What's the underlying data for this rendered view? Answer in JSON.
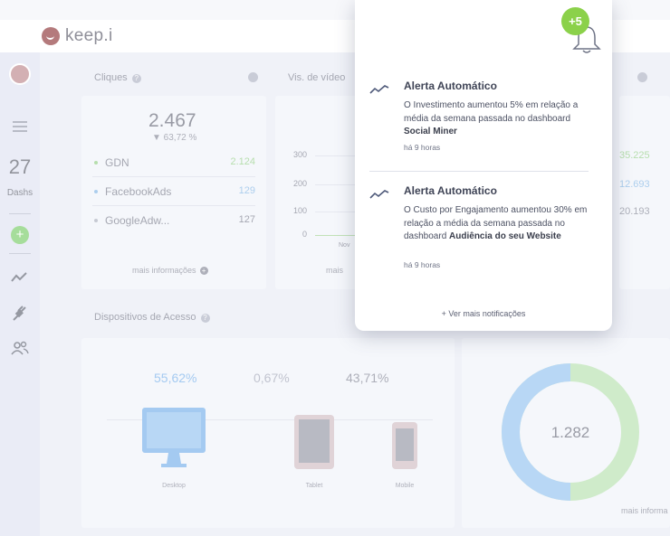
{
  "app": {
    "logo_text": "keep.i"
  },
  "sidebar": {
    "dash_count": "27",
    "dash_label": "Dashs",
    "items": [
      {
        "icon": "trend-icon"
      },
      {
        "icon": "plug-icon"
      },
      {
        "icon": "users-icon"
      }
    ]
  },
  "panels": {
    "cliques": {
      "title": "Cliques",
      "total": "2.467",
      "delta": "▼ 63,72 %",
      "rows": [
        {
          "label": "GDN",
          "value": "2.124",
          "color": "#7cc46b"
        },
        {
          "label": "FacebookAds",
          "value": "129",
          "color": "#6aa7e0"
        },
        {
          "label": "GoogleAdw...",
          "value": "127",
          "color": "#9aa0b0"
        }
      ],
      "more": "mais informações"
    },
    "video": {
      "title": "Vis. de vídeo",
      "y_ticks": [
        "300",
        "200",
        "100",
        "0"
      ],
      "x_tick": "Nov",
      "more": "mais"
    },
    "right_values": [
      "35.225",
      "12.693",
      "20.193"
    ],
    "devices": {
      "title": "Dispositivos de Acesso",
      "percents": [
        {
          "value": "55,62%",
          "color": "#5aa0e6"
        },
        {
          "value": "0,67%",
          "color": "#8f94a8"
        },
        {
          "value": "43,71%",
          "color": "#6b6f80"
        }
      ],
      "labels": [
        "Desktop",
        "Tablet",
        "Mobile"
      ]
    },
    "donut": {
      "total": "1.282",
      "share_blue": 0.5,
      "more": "mais informa"
    }
  },
  "notifications": {
    "badge": "+5",
    "items": [
      {
        "title": "Alerta Automático",
        "body_parts": [
          "O Investimento aumentou 5% em relação a média da semana passada no dashboard ",
          "Social Miner"
        ],
        "time": "há 9 horas"
      },
      {
        "title": "Alerta Automático",
        "body_parts": [
          "O Custo por Engajamento aumentou 30% em relação a média da semana passada no dashboard ",
          "Audiência do seu Website"
        ],
        "time": "há 9 horas"
      }
    ],
    "see_more": "+ Ver mais notificações"
  }
}
